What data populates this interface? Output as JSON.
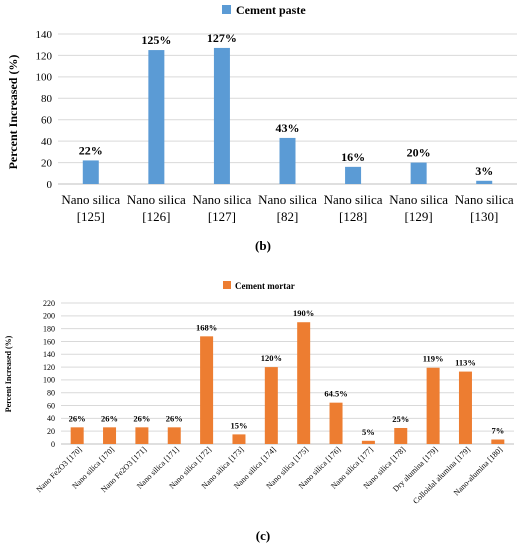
{
  "chart_data": [
    {
      "type": "bar",
      "legend": "Cement paste",
      "legend_position": "top-center",
      "ylabel": "Percent Increased (%)",
      "ylim": [
        0,
        140
      ],
      "yticks": [
        0,
        20,
        40,
        60,
        80,
        100,
        120,
        140
      ],
      "grid": true,
      "categories": [
        [
          "Nano silica",
          "[125]"
        ],
        [
          "Nano silica",
          "[126]"
        ],
        [
          "Nano silica",
          "[127]"
        ],
        [
          "Nano silica",
          "[82]"
        ],
        [
          "Nano silica",
          "[128]"
        ],
        [
          "Nano silica",
          "[129]"
        ],
        [
          "Nano silica",
          "[130]"
        ]
      ],
      "values": [
        22,
        125,
        127,
        43,
        16,
        20,
        3
      ],
      "data_labels": [
        "22%",
        "125%",
        "127%",
        "43%",
        "16%",
        "20%",
        "3%"
      ],
      "color": "#5b9bd5",
      "caption": "(b)"
    },
    {
      "type": "bar",
      "legend": "Cement mortar",
      "legend_position": "top-center",
      "ylabel": "Percent Increased (%)",
      "ylim": [
        0,
        220
      ],
      "yticks": [
        0,
        20,
        40,
        60,
        80,
        100,
        120,
        140,
        160,
        180,
        200,
        220
      ],
      "grid": true,
      "categories": [
        "Nano Fe2O3 [170]",
        "Nano silica [170]",
        "Nano Fe2O3 [171]",
        "Nano silica [171]",
        "Nano silica [172]",
        "Nano silica [173]",
        "Nano silica [174]",
        "Nano silica [175]",
        "Nano silica [176]",
        "Nano silica [177]",
        "Nano silica [178]",
        "Dry alumina [179]",
        "Colloidal alumina [179]",
        "Nano-alumina [180]"
      ],
      "values": [
        26,
        26,
        26,
        26,
        168,
        15,
        120,
        190,
        64.5,
        5,
        25,
        119,
        113,
        7
      ],
      "data_labels": [
        "26%",
        "26%",
        "26%",
        "26%",
        "168%",
        "15%",
        "120%",
        "190%",
        "64.5%",
        "5%",
        "25%",
        "119%",
        "113%",
        "7%"
      ],
      "color": "#ed7d31",
      "caption": "(c)"
    }
  ]
}
